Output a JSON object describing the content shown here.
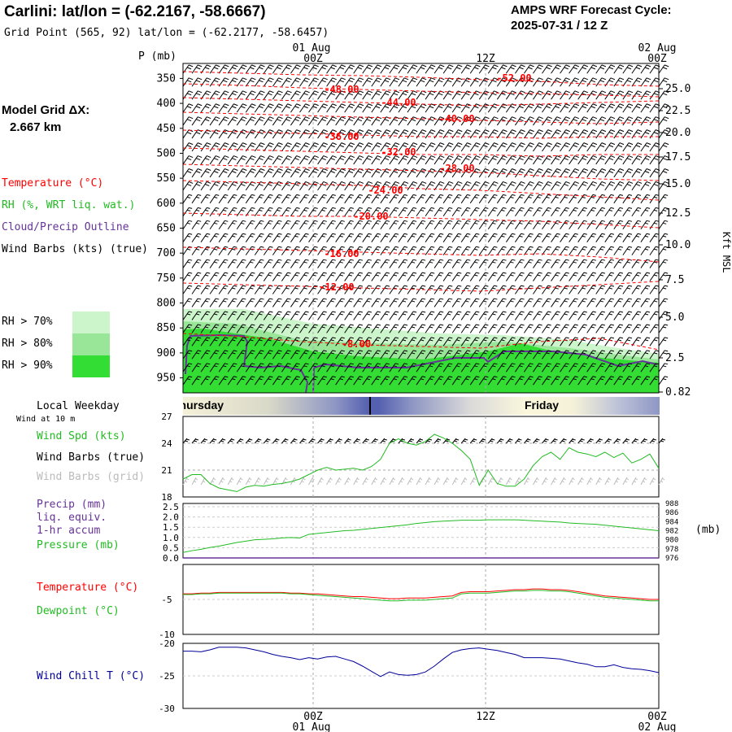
{
  "header": {
    "title": "Carlini:  lat/lon = (-62.2167, -58.6667)",
    "gridpoint": "Grid Point (565, 92) lat/lon = (-62.2177, -58.6457)",
    "cycle_line1": "AMPS WRF Forecast Cycle:",
    "cycle_line2": "2025-07-31 / 12  Z"
  },
  "time_axis": {
    "top_dates": [
      "01 Aug",
      "02 Aug"
    ],
    "top_hours": [
      "00Z",
      "12Z",
      "00Z"
    ],
    "bottom_hours": [
      "00Z",
      "12Z",
      "00Z"
    ],
    "bottom_dates": [
      "01 Aug",
      "02 Aug"
    ]
  },
  "left_panel": {
    "model_grid_label": "Model Grid ΔX:",
    "model_grid_value": "2.667 km",
    "legend_temperature": "Temperature (°C)",
    "legend_rh": "RH (%, WRT liq. wat.)",
    "legend_cloud": "Cloud/Precip Outline",
    "legend_wind": "Wind Barbs (kts) (true)",
    "rh70": "RH > 70%",
    "rh80": "RH > 80%",
    "rh90": "RH > 90%",
    "local_weekday": "Local Weekday",
    "wind_at_10m": "Wind at 10 m",
    "wind_spd": "Wind Spd (kts)",
    "wind_barbs_true": "Wind Barbs (true)",
    "wind_barbs_grid": "Wind Barbs (grid)",
    "precip": "Precip (mm)",
    "liq_equiv": "liq. equiv.",
    "hr_accum": "1-hr accum",
    "pressure": "Pressure (mb)",
    "temperature": "Temperature (°C)",
    "dewpoint": "Dewpoint (°C)",
    "windchill": "Wind Chill T (°C)"
  },
  "colors": {
    "temperature": "#ff0000",
    "rh": "#22bb22",
    "cloud": "#663399",
    "windchill": "#000099",
    "rh70": "#ccf5cc",
    "rh80": "#99e699",
    "rh90": "#33dd33"
  },
  "chart_data": [
    {
      "type": "contour",
      "pressure_axis_label": "P (mb)",
      "pressure_ticks": [
        "350",
        "400",
        "450",
        "500",
        "550",
        "600",
        "650",
        "700",
        "750",
        "800",
        "850",
        "900",
        "950"
      ],
      "height_axis_label": "Kft MSL",
      "height_ticks": [
        "25.0",
        "22.5",
        "20.0",
        "17.5",
        "15.0",
        "12.5",
        "10.0",
        "7.5",
        "5.0",
        "2.5",
        "0.82"
      ],
      "temperature_contours": [
        "-52.00",
        "-48.00",
        "-44.00",
        "-40.00",
        "-36.00",
        "-32.00",
        "-28.00",
        "-24.00",
        "-20.00",
        "-16.00",
        "-12.00",
        "-8.00"
      ]
    },
    {
      "type": "timeline",
      "days": [
        "Thursday",
        "Friday"
      ]
    },
    {
      "type": "line",
      "name": "wind",
      "y_ticks": [
        "27",
        "24",
        "21",
        "18"
      ],
      "ylim": [
        18,
        27
      ],
      "wind_speed": [
        20,
        20.5,
        20.5,
        19.5,
        19,
        18.8,
        18.6,
        19.1,
        19.3,
        19.2,
        19.4,
        19.5,
        19.7,
        20,
        20.5,
        21,
        21.3,
        21,
        21.1,
        21.2,
        21,
        21.4,
        22.2,
        24,
        24.5,
        24,
        23.8,
        24.2,
        25,
        24.6,
        24,
        23.2,
        22.2,
        19.3,
        21,
        19.5,
        19.2,
        19.2,
        20,
        21.5,
        22.5,
        23,
        22.2,
        23.5,
        23,
        22.8,
        22.5,
        23,
        22.4,
        22.9,
        21.8,
        22.2,
        22.8,
        21.2
      ]
    },
    {
      "type": "line",
      "name": "precip_pressure",
      "precip_ticks": [
        "2.5",
        "2.0",
        "1.5",
        "1.0",
        "0.5",
        "0.0"
      ],
      "pressure_ticks": [
        "988",
        "986",
        "984",
        "982",
        "980",
        "978",
        "976"
      ],
      "pressure_unit": "(mb)",
      "pressure_ylim": [
        976,
        988
      ],
      "precip_accum": [
        0,
        0,
        0,
        0,
        0,
        0,
        0,
        0,
        0,
        0,
        0,
        0,
        0,
        0,
        0,
        0,
        0,
        0,
        0,
        0,
        0,
        0,
        0,
        0,
        0,
        0,
        0,
        0,
        0,
        0,
        0,
        0,
        0,
        0,
        0,
        0,
        0,
        0,
        0,
        0,
        0,
        0,
        0,
        0,
        0,
        0,
        0,
        0,
        0,
        0,
        0,
        0,
        0,
        0
      ],
      "pressure": [
        977.2,
        977.6,
        977.9,
        978.3,
        978.6,
        979.0,
        979.4,
        979.7,
        980.0,
        980.1,
        980.2,
        980.4,
        980.5,
        980.4,
        981.2,
        981.4,
        981.6,
        981.8,
        982.0,
        982.1,
        982.3,
        982.5,
        982.7,
        982.9,
        983.1,
        983.3,
        983.6,
        983.8,
        984.0,
        984.1,
        984.2,
        984.3,
        984.3,
        984.3,
        984.4,
        984.4,
        984.4,
        984.4,
        984.3,
        984.2,
        984.1,
        984.0,
        983.9,
        983.7,
        983.6,
        983.5,
        983.4,
        983.2,
        983.0,
        982.8,
        982.6,
        982.4,
        982.2,
        982.0
      ]
    },
    {
      "type": "line",
      "name": "temperature_dewpoint",
      "y_ticks": [
        "-5",
        "-10"
      ],
      "temperature": [
        -4.2,
        -4.2,
        -4.1,
        -4.1,
        -4.0,
        -4.0,
        -4.0,
        -4.0,
        -4.0,
        -4.0,
        -4.0,
        -4.0,
        -4.1,
        -4.1,
        -4.2,
        -4.2,
        -4.3,
        -4.4,
        -4.5,
        -4.6,
        -4.6,
        -4.7,
        -4.8,
        -4.9,
        -4.9,
        -4.8,
        -4.8,
        -4.8,
        -4.7,
        -4.6,
        -4.5,
        -4.0,
        -3.9,
        -3.9,
        -3.9,
        -3.8,
        -3.7,
        -3.6,
        -3.6,
        -3.5,
        -3.5,
        -3.6,
        -3.6,
        -3.7,
        -3.9,
        -4.1,
        -4.3,
        -4.5,
        -4.6,
        -4.7,
        -4.8,
        -4.9,
        -5.0,
        -5.0
      ],
      "dewpoint": [
        -4.3,
        -4.3,
        -4.2,
        -4.2,
        -4.1,
        -4.1,
        -4.1,
        -4.1,
        -4.1,
        -4.1,
        -4.1,
        -4.1,
        -4.2,
        -4.2,
        -4.3,
        -4.4,
        -4.5,
        -4.6,
        -4.7,
        -4.8,
        -4.9,
        -5.0,
        -5.1,
        -5.2,
        -5.2,
        -5.1,
        -5.1,
        -5.1,
        -5.0,
        -4.9,
        -4.8,
        -4.2,
        -4.1,
        -4.1,
        -4.1,
        -4.0,
        -3.9,
        -3.8,
        -3.8,
        -3.7,
        -3.7,
        -3.8,
        -3.8,
        -3.9,
        -4.1,
        -4.3,
        -4.5,
        -4.7,
        -4.8,
        -4.9,
        -5.0,
        -5.1,
        -5.2,
        -5.2
      ]
    },
    {
      "type": "line",
      "name": "windchill",
      "y_ticks": [
        "-20",
        "-25",
        "-30"
      ],
      "ylim": [
        -30,
        -20
      ],
      "windchill": [
        -21.2,
        -21.2,
        -21.3,
        -21.0,
        -20.6,
        -20.6,
        -20.6,
        -20.7,
        -21.0,
        -21.3,
        -21.7,
        -22.0,
        -22.2,
        -22.5,
        -22.2,
        -22.4,
        -22.1,
        -22.0,
        -22.4,
        -22.8,
        -23.5,
        -24.3,
        -25.1,
        -24.4,
        -24.8,
        -24.9,
        -24.8,
        -24.4,
        -23.5,
        -22.4,
        -21.4,
        -21.0,
        -20.8,
        -20.7,
        -20.9,
        -21.1,
        -21.4,
        -21.7,
        -22.2,
        -22.2,
        -22.2,
        -22.3,
        -22.4,
        -22.7,
        -23.0,
        -23.2,
        -23.6,
        -23.6,
        -23.3,
        -23.7,
        -23.9,
        -24.0,
        -24.2,
        -24.5
      ]
    }
  ]
}
